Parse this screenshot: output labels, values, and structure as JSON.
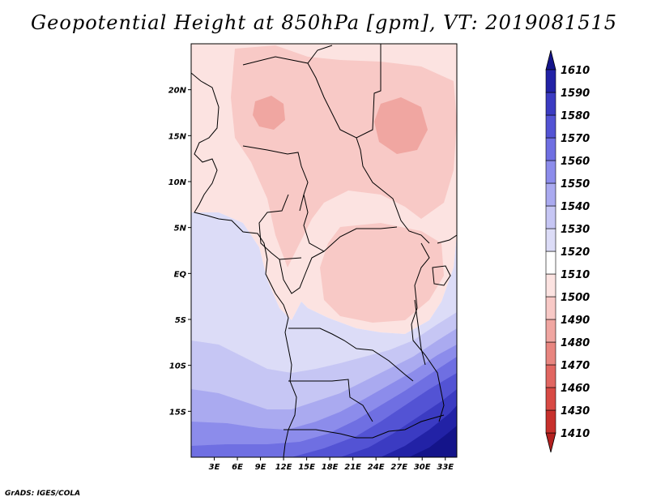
{
  "title": "Geopotential Height at 850hPa [gpm], VT: 2019081515",
  "credit": "GrADS: IGES/COLA",
  "map": {
    "lon_range": [
      0,
      34.5
    ],
    "lat_range": [
      -20,
      25
    ],
    "lat_ticks": [
      {
        "value": 20,
        "label": "20N"
      },
      {
        "value": 15,
        "label": "15N"
      },
      {
        "value": 10,
        "label": "10N"
      },
      {
        "value": 5,
        "label": "5N"
      },
      {
        "value": 0,
        "label": "EQ"
      },
      {
        "value": -5,
        "label": "5S"
      },
      {
        "value": -10,
        "label": "10S"
      },
      {
        "value": -15,
        "label": "15S"
      }
    ],
    "lon_ticks": [
      {
        "value": 3,
        "label": "3E"
      },
      {
        "value": 6,
        "label": "6E"
      },
      {
        "value": 9,
        "label": "9E"
      },
      {
        "value": 12,
        "label": "12E"
      },
      {
        "value": 15,
        "label": "15E"
      },
      {
        "value": 18,
        "label": "18E"
      },
      {
        "value": 21,
        "label": "21E"
      },
      {
        "value": 24,
        "label": "24E"
      },
      {
        "value": 27,
        "label": "27E"
      },
      {
        "value": 30,
        "label": "30E"
      },
      {
        "value": 33,
        "label": "33E"
      }
    ]
  },
  "colorbar": {
    "levels": [
      {
        "label": "1410",
        "color": "#b3201f"
      },
      {
        "label": "1430",
        "color": "#c7302c"
      },
      {
        "label": "1460",
        "color": "#d84a44"
      },
      {
        "label": "1470",
        "color": "#e16661"
      },
      {
        "label": "1480",
        "color": "#e8857f"
      },
      {
        "label": "1490",
        "color": "#f0a6a1"
      },
      {
        "label": "1500",
        "color": "#f8c9c6"
      },
      {
        "label": "1510",
        "color": "#fce3e1"
      },
      {
        "label": "1520",
        "color": "#ffffff"
      },
      {
        "label": "1530",
        "color": "#dcdcf7"
      },
      {
        "label": "1540",
        "color": "#c6c6f4"
      },
      {
        "label": "1550",
        "color": "#aaaaf0"
      },
      {
        "label": "1560",
        "color": "#8c8ceb"
      },
      {
        "label": "1570",
        "color": "#6f6fe2"
      },
      {
        "label": "1580",
        "color": "#5353d4"
      },
      {
        "label": "1590",
        "color": "#3b3bc2"
      },
      {
        "label": "1610",
        "color": "#2222a6"
      }
    ],
    "top_color": "#14148a"
  },
  "fill_colors": {
    "pink_light": "#fce3e1",
    "pink_mid": "#f8c9c6",
    "pink_dark": "#f0a6a1",
    "blue_1": "#dcdcf7",
    "blue_2": "#c6c6f4",
    "blue_3": "#aaaaf0",
    "blue_4": "#8c8ceb",
    "blue_5": "#6f6fe2",
    "blue_6": "#5353d4",
    "blue_7": "#3b3bc2",
    "blue_8": "#2222a6",
    "blue_9": "#14148a"
  }
}
